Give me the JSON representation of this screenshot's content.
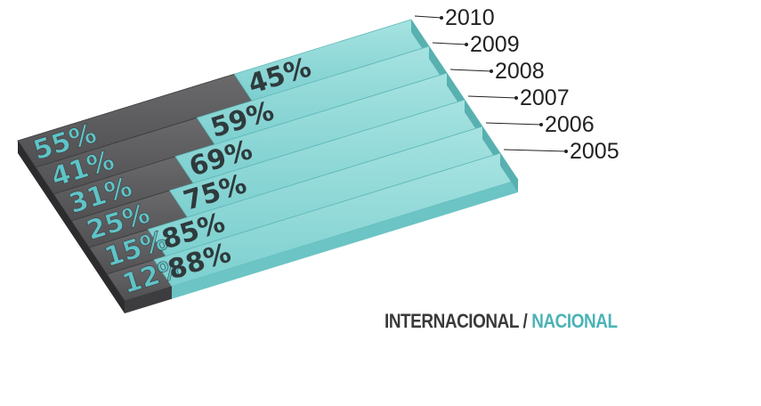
{
  "chart_data": {
    "type": "bar",
    "stacked": true,
    "orientation": "horizontal-3d",
    "categories": [
      "2010",
      "2009",
      "2008",
      "2007",
      "2006",
      "2005"
    ],
    "series": [
      {
        "name": "INTERNACIONAL",
        "values": [
          55,
          41,
          31,
          25,
          15,
          12
        ],
        "labels": [
          "55%",
          "41%",
          "31%",
          "25%",
          "15%",
          "12%"
        ]
      },
      {
        "name": "NACIONAL",
        "values": [
          45,
          59,
          69,
          75,
          85,
          88
        ],
        "labels": [
          "45%",
          "59%",
          "69%",
          "75%",
          "85%",
          "88%"
        ]
      }
    ],
    "colors": {
      "INTERNACIONAL": "#4a4a4c",
      "NACIONAL": "#7fd3d2"
    },
    "legend": {
      "position": "bottom-right",
      "internacional": "INTERNACIONAL",
      "separator": "/",
      "nacional": "NACIONAL"
    }
  }
}
